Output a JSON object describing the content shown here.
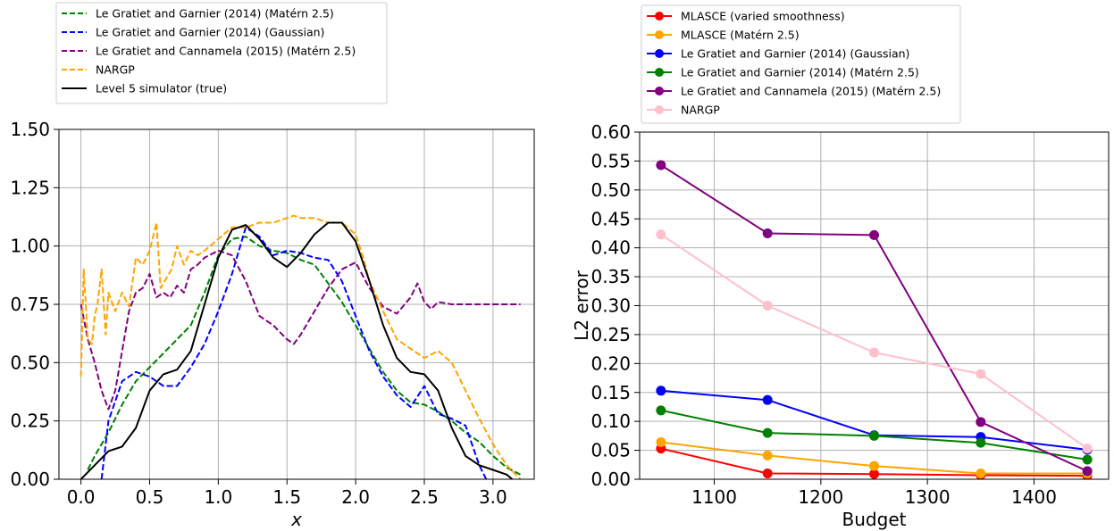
{
  "chart_data": [
    {
      "type": "line",
      "xlabel": "x",
      "ylabel": "",
      "xlim": [
        -0.16,
        3.3
      ],
      "ylim": [
        0,
        1.5
      ],
      "xticks": [
        "0.0",
        "0.5",
        "1.0",
        "1.5",
        "2.0",
        "2.5",
        "3.0"
      ],
      "yticks": [
        "0.00",
        "0.25",
        "0.50",
        "0.75",
        "1.00",
        "1.25",
        "1.50"
      ],
      "grid": true,
      "legend_position": "top",
      "series": [
        {
          "name": "Le Gratiet and Garnier (2014) (Matérn 2.5)",
          "color": "#008000",
          "dash": true,
          "x": [
            0.05,
            0.1,
            0.2,
            0.3,
            0.4,
            0.5,
            0.6,
            0.7,
            0.8,
            0.9,
            1.0,
            1.1,
            1.2,
            1.3,
            1.4,
            1.5,
            1.6,
            1.7,
            1.8,
            1.9,
            2.0,
            2.1,
            2.2,
            2.3,
            2.4,
            2.5,
            2.6,
            2.7,
            2.8,
            2.9,
            3.0,
            3.1,
            3.2
          ],
          "y": [
            0.04,
            0.1,
            0.2,
            0.32,
            0.42,
            0.48,
            0.54,
            0.6,
            0.66,
            0.8,
            0.96,
            1.03,
            1.04,
            1.0,
            0.98,
            0.97,
            0.94,
            0.92,
            0.84,
            0.76,
            0.66,
            0.56,
            0.46,
            0.38,
            0.33,
            0.32,
            0.29,
            0.25,
            0.2,
            0.16,
            0.1,
            0.05,
            0.02
          ]
        },
        {
          "name": "Le Gratiet and Garnier (2014) (Gaussian)",
          "color": "#0000ff",
          "dash": true,
          "x": [
            0.15,
            0.2,
            0.3,
            0.4,
            0.5,
            0.6,
            0.7,
            0.8,
            0.9,
            1.0,
            1.1,
            1.2,
            1.3,
            1.4,
            1.5,
            1.6,
            1.7,
            1.8,
            1.9,
            2.0,
            2.1,
            2.2,
            2.3,
            2.4,
            2.5,
            2.6,
            2.7,
            2.8,
            2.9,
            2.95
          ],
          "y": [
            0.0,
            0.25,
            0.42,
            0.46,
            0.44,
            0.4,
            0.4,
            0.48,
            0.58,
            0.72,
            0.88,
            1.08,
            1.04,
            0.96,
            0.98,
            0.97,
            0.95,
            0.94,
            0.85,
            0.7,
            0.55,
            0.44,
            0.36,
            0.31,
            0.4,
            0.28,
            0.26,
            0.23,
            0.06,
            0.0
          ]
        },
        {
          "name": "Le Gratiet and Cannamela (2015) (Matérn 2.5)",
          "color": "#800080",
          "dash": true,
          "x": [
            0.0,
            0.05,
            0.1,
            0.15,
            0.2,
            0.25,
            0.3,
            0.35,
            0.4,
            0.45,
            0.5,
            0.55,
            0.6,
            0.65,
            0.7,
            0.75,
            0.8,
            0.85,
            0.9,
            1.0,
            1.1,
            1.2,
            1.3,
            1.4,
            1.5,
            1.55,
            1.6,
            1.7,
            1.8,
            1.9,
            2.0,
            2.1,
            2.2,
            2.3,
            2.4,
            2.45,
            2.5,
            2.55,
            2.6,
            2.7,
            2.8,
            2.9,
            3.0,
            3.1,
            3.2
          ],
          "y": [
            0.75,
            0.6,
            0.5,
            0.38,
            0.3,
            0.38,
            0.55,
            0.72,
            0.8,
            0.82,
            0.88,
            0.78,
            0.8,
            0.78,
            0.83,
            0.8,
            0.9,
            0.92,
            0.95,
            0.98,
            0.96,
            0.85,
            0.7,
            0.66,
            0.6,
            0.58,
            0.62,
            0.72,
            0.82,
            0.9,
            0.93,
            0.82,
            0.74,
            0.71,
            0.78,
            0.84,
            0.76,
            0.73,
            0.76,
            0.75,
            0.75,
            0.75,
            0.75,
            0.75,
            0.75
          ]
        },
        {
          "name": "NARGP",
          "color": "#ffa500",
          "dash": true,
          "x": [
            0.0,
            0.02,
            0.05,
            0.08,
            0.1,
            0.12,
            0.15,
            0.18,
            0.2,
            0.25,
            0.3,
            0.35,
            0.4,
            0.45,
            0.5,
            0.55,
            0.58,
            0.62,
            0.66,
            0.7,
            0.75,
            0.8,
            0.85,
            0.9,
            1.0,
            1.1,
            1.2,
            1.3,
            1.4,
            1.5,
            1.55,
            1.6,
            1.7,
            1.8,
            1.9,
            2.0,
            2.05,
            2.1,
            2.2,
            2.3,
            2.4,
            2.5,
            2.6,
            2.7,
            2.8,
            2.9,
            3.0,
            3.1,
            3.2
          ],
          "y": [
            0.44,
            0.9,
            0.6,
            0.58,
            0.7,
            0.75,
            0.9,
            0.62,
            0.8,
            0.72,
            0.8,
            0.74,
            0.95,
            0.92,
            0.98,
            1.1,
            0.82,
            0.86,
            0.9,
            1.0,
            0.92,
            0.98,
            0.96,
            0.98,
            1.03,
            1.08,
            1.08,
            1.1,
            1.1,
            1.12,
            1.13,
            1.12,
            1.12,
            1.1,
            1.1,
            1.05,
            0.96,
            0.85,
            0.72,
            0.6,
            0.56,
            0.52,
            0.55,
            0.5,
            0.38,
            0.26,
            0.15,
            0.06,
            0.0
          ]
        },
        {
          "name": "Level 5 simulator (true)",
          "color": "#000000",
          "dash": false,
          "x": [
            0.0,
            0.1,
            0.2,
            0.3,
            0.4,
            0.5,
            0.6,
            0.7,
            0.8,
            0.9,
            1.0,
            1.1,
            1.2,
            1.3,
            1.4,
            1.5,
            1.6,
            1.7,
            1.8,
            1.9,
            2.0,
            2.1,
            2.2,
            2.3,
            2.4,
            2.5,
            2.6,
            2.7,
            2.8,
            2.9,
            3.0,
            3.1,
            3.14
          ],
          "y": [
            0.0,
            0.06,
            0.12,
            0.14,
            0.22,
            0.38,
            0.45,
            0.47,
            0.55,
            0.75,
            0.95,
            1.07,
            1.09,
            1.03,
            0.95,
            0.91,
            0.97,
            1.05,
            1.1,
            1.1,
            1.02,
            0.85,
            0.66,
            0.52,
            0.46,
            0.45,
            0.38,
            0.22,
            0.1,
            0.06,
            0.04,
            0.02,
            0.0
          ]
        }
      ]
    },
    {
      "type": "line",
      "xlabel": "Budget",
      "ylabel": "L2 error",
      "xlim": [
        1030,
        1470
      ],
      "ylim": [
        0,
        0.6
      ],
      "xticks": [
        "1100",
        "1200",
        "1300",
        "1400"
      ],
      "yticks": [
        "0.00",
        "0.05",
        "0.10",
        "0.15",
        "0.20",
        "0.25",
        "0.30",
        "0.35",
        "0.40",
        "0.45",
        "0.50",
        "0.55",
        "0.60"
      ],
      "grid": true,
      "legend_position": "top",
      "x": [
        1050,
        1150,
        1250,
        1350,
        1450
      ],
      "series": [
        {
          "name": "MLASCE (varied smoothness)",
          "color": "#ff0000",
          "values": [
            0.053,
            0.01,
            0.009,
            0.007,
            0.006
          ]
        },
        {
          "name": "MLASCE (Matérn 2.5)",
          "color": "#ffa500",
          "values": [
            0.064,
            0.041,
            0.023,
            0.01,
            0.01
          ]
        },
        {
          "name": "Le Gratiet and Garnier (2014) (Gaussian)",
          "color": "#0000ff",
          "values": [
            0.153,
            0.137,
            0.076,
            0.073,
            0.051
          ]
        },
        {
          "name": "Le Gratiet and Garnier (2014) (Matérn 2.5)",
          "color": "#008000",
          "values": [
            0.119,
            0.08,
            0.075,
            0.063,
            0.034
          ]
        },
        {
          "name": "Le Gratiet and Cannamela (2015) (Matérn 2.5)",
          "color": "#800080",
          "values": [
            0.543,
            0.425,
            0.422,
            0.099,
            0.014
          ]
        },
        {
          "name": "NARGP",
          "color": "#ffc0cb",
          "values": [
            0.423,
            0.3,
            0.219,
            0.182,
            0.053
          ]
        }
      ]
    }
  ]
}
